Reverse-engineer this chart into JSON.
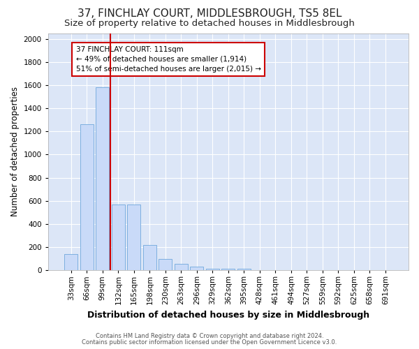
{
  "title": "37, FINCHLAY COURT, MIDDLESBROUGH, TS5 8EL",
  "subtitle": "Size of property relative to detached houses in Middlesbrough",
  "xlabel": "Distribution of detached houses by size in Middlesbrough",
  "ylabel": "Number of detached properties",
  "categories": [
    "33sqm",
    "66sqm",
    "99sqm",
    "132sqm",
    "165sqm",
    "198sqm",
    "230sqm",
    "263sqm",
    "296sqm",
    "329sqm",
    "362sqm",
    "395sqm",
    "428sqm",
    "461sqm",
    "494sqm",
    "527sqm",
    "559sqm",
    "592sqm",
    "625sqm",
    "658sqm",
    "691sqm"
  ],
  "values": [
    140,
    1265,
    1580,
    570,
    570,
    220,
    100,
    55,
    30,
    15,
    10,
    10,
    0,
    0,
    0,
    0,
    0,
    0,
    0,
    0,
    0
  ],
  "bar_color": "#c9daf8",
  "bar_edge_color": "#6fa8dc",
  "property_line_x": 2.5,
  "property_line_color": "#cc0000",
  "annotation_text": "37 FINCHLAY COURT: 111sqm\n← 49% of detached houses are smaller (1,914)\n51% of semi-detached houses are larger (2,015) →",
  "annotation_box_facecolor": "#ffffff",
  "annotation_box_edgecolor": "#cc0000",
  "ylim": [
    0,
    2050
  ],
  "yticks": [
    0,
    200,
    400,
    600,
    800,
    1000,
    1200,
    1400,
    1600,
    1800,
    2000
  ],
  "footer_line1": "Contains HM Land Registry data © Crown copyright and database right 2024.",
  "footer_line2": "Contains public sector information licensed under the Open Government Licence v3.0.",
  "fig_bg_color": "#ffffff",
  "plot_bg_color": "#dce6f7",
  "title_fontsize": 11,
  "subtitle_fontsize": 9.5,
  "xlabel_fontsize": 9,
  "ylabel_fontsize": 8.5,
  "tick_fontsize": 7.5,
  "annotation_fontsize": 7.5,
  "footer_fontsize": 6.0
}
